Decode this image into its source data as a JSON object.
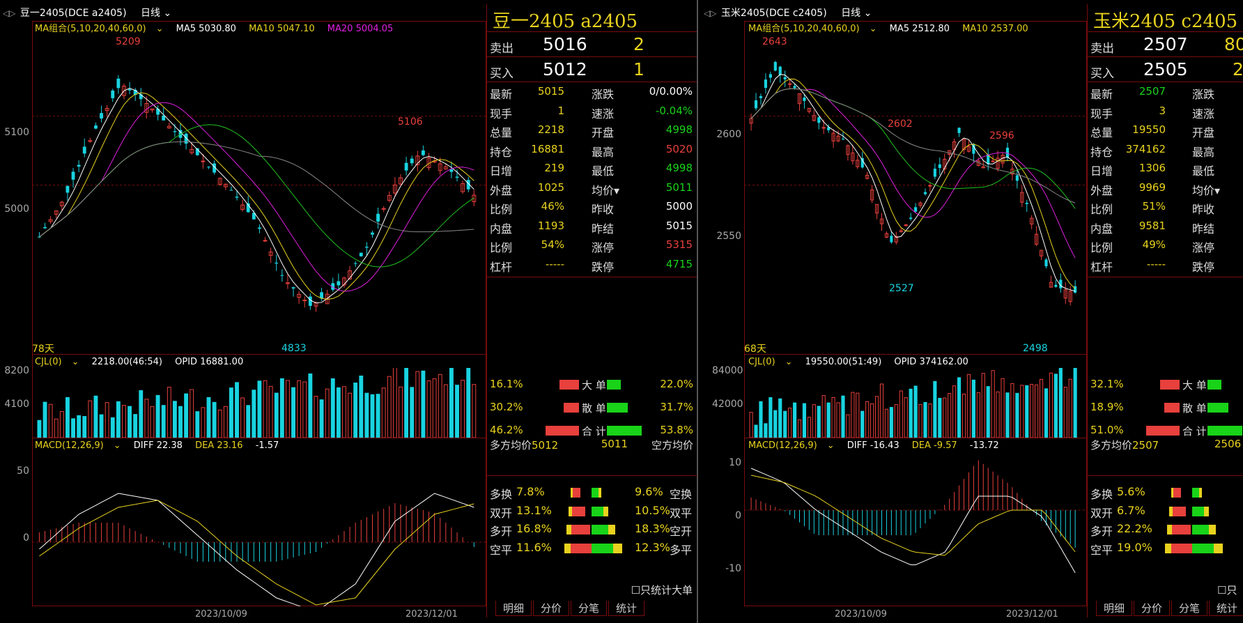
{
  "panels": [
    {
      "title": "豆一2405(DCE a2405)",
      "period": "日线",
      "indicator": "MA组合(5,10,20,40,60,0)",
      "ma5": "MA5 5030.80",
      "ma10": "MA10 5047.10",
      "ma20": "MA20 5004.05",
      "y_ticks": [
        "5100",
        "5000"
      ],
      "hi_label": "5209",
      "lo_label": "4833",
      "peak2_label": "5106",
      "days": "78天",
      "vol_info": "CJL(0)",
      "vol_val": "2218.00(46:54)",
      "opid": "OPID 16881.00",
      "vol_ticks": [
        "8200",
        "4100"
      ],
      "macd_info": "MACD(12,26,9)",
      "diff": "DIFF 22.38",
      "dea": "DEA 23.16",
      "macd": "-1.57",
      "macd_ticks": [
        "50",
        "0"
      ],
      "dates": [
        "2023/10/09",
        "2023/12/01"
      ],
      "quote": {
        "name": "豆一2405  a2405",
        "sell_k": "卖出",
        "sell_p": "5016",
        "sell_v": "2",
        "buy_k": "买入",
        "buy_p": "5012",
        "buy_v": "1",
        "rows": [
          [
            "最新",
            "5015",
            "涨跌",
            "0/0.00%"
          ],
          [
            "现手",
            "1",
            "速涨",
            "-0.04%"
          ],
          [
            "总量",
            "2218",
            "开盘",
            "4998"
          ],
          [
            "持仓",
            "16881",
            "最高",
            "5020"
          ],
          [
            "日增",
            "219",
            "最低",
            "4998"
          ],
          [
            "外盘",
            "1025",
            "均价▾",
            "5011"
          ],
          [
            "比例",
            "46%",
            "昨收",
            "5000"
          ],
          [
            "内盘",
            "1193",
            "昨结",
            "5015"
          ],
          [
            "比例",
            "54%",
            "涨停",
            "5315"
          ],
          [
            "杠杆",
            "-----",
            "跌停",
            "4715"
          ]
        ],
        "flow": [
          [
            "16.1%",
            "大 单",
            "22.0%"
          ],
          [
            "30.2%",
            "散 单",
            "31.7%"
          ],
          [
            "46.2%",
            "合 计",
            "53.8%"
          ]
        ],
        "avg_l": "多方均价",
        "avg_lv": "5012",
        "avg_rv": "5011",
        "avg_r": "空方均价",
        "chg": [
          [
            "多换",
            "7.8%",
            "9.6%",
            "空换"
          ],
          [
            "双开",
            "13.1%",
            "10.5%",
            "双平"
          ],
          [
            "多开",
            "16.8%",
            "18.3%",
            "空开"
          ],
          [
            "空平",
            "11.6%",
            "12.3%",
            "多平"
          ]
        ],
        "bigonly": "只统计大单",
        "tabs": [
          "明细",
          "分价",
          "分笔",
          "统计"
        ]
      }
    },
    {
      "title": "玉米2405(DCE c2405)",
      "period": "日线",
      "indicator": "MA组合(5,10,20,40,60,0)",
      "ma5": "MA5 2512.80",
      "ma10": "MA10 2537.00",
      "ma20": "",
      "y_ticks": [
        "2600",
        "2550"
      ],
      "hi_label": "2643",
      "lo_label": "2527",
      "peak2_label": "2602",
      "peak3_label": "2596",
      "lo2_label": "2498",
      "days": "68天",
      "vol_info": "CJL(0)",
      "vol_val": "19550.00(51:49)",
      "opid": "OPID 374162.00",
      "vol_ticks": [
        "84000",
        "42000"
      ],
      "macd_info": "MACD(12,26,9)",
      "diff": "DIFF -16.43",
      "dea": "DEA -9.57",
      "macd": "-13.72",
      "macd_ticks": [
        "10",
        "0",
        "-10"
      ],
      "dates": [
        "2023/10/09",
        "2023/12/01"
      ],
      "quote": {
        "name": "玉米2405  c2405",
        "sell_k": "卖出",
        "sell_p": "2507",
        "sell_v": "80",
        "buy_k": "买入",
        "buy_p": "2505",
        "buy_v": "2",
        "rows": [
          [
            "最新",
            "2507",
            "涨跌",
            ""
          ],
          [
            "现手",
            "3",
            "速涨",
            ""
          ],
          [
            "总量",
            "19550",
            "开盘",
            ""
          ],
          [
            "持仓",
            "374162",
            "最高",
            ""
          ],
          [
            "日增",
            "1306",
            "最低",
            ""
          ],
          [
            "外盘",
            "9969",
            "均价▾",
            ""
          ],
          [
            "比例",
            "51%",
            "昨收",
            ""
          ],
          [
            "内盘",
            "9581",
            "昨结",
            ""
          ],
          [
            "比例",
            "49%",
            "涨停",
            ""
          ],
          [
            "杠杆",
            "-----",
            "跌停",
            ""
          ]
        ],
        "flow": [
          [
            "32.1%",
            "大 单",
            ""
          ],
          [
            "18.9%",
            "散 单",
            ""
          ],
          [
            "51.0%",
            "合 计",
            ""
          ]
        ],
        "avg_l": "多方均价",
        "avg_lv": "2507",
        "avg_rv": "2506",
        "avg_r": "",
        "chg": [
          [
            "多换",
            "5.6%",
            "",
            ""
          ],
          [
            "双开",
            "6.7%",
            "",
            ""
          ],
          [
            "多开",
            "22.2%",
            "",
            ""
          ],
          [
            "空平",
            "19.0%",
            "",
            ""
          ]
        ],
        "bigonly": "只",
        "tabs": [
          "明细",
          "分价",
          "分笔",
          "统计"
        ]
      }
    }
  ],
  "colors": {
    "up": "#e8403c",
    "down": "#19d3e0",
    "ma5": "#ffffff",
    "ma10": "#e8d21e",
    "ma20": "#e020e0",
    "ma40": "#20c020",
    "ma60": "#888888",
    "border": "#7a0c0c"
  }
}
